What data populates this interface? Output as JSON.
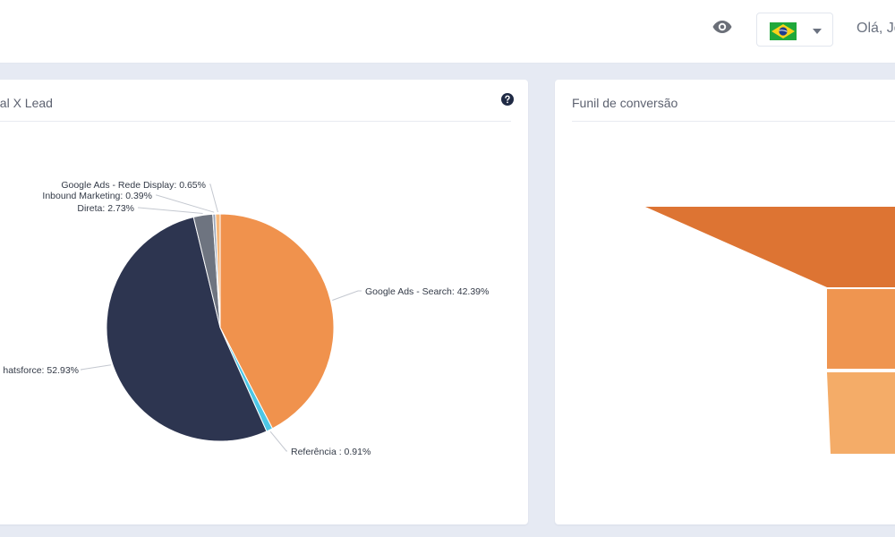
{
  "header": {
    "greeting": "Olá, Jo",
    "visibility_icon": "eye-icon",
    "language_flag": "brazil-flag-icon",
    "dropdown_icon": "caret-down-icon"
  },
  "cards": {
    "pie": {
      "title": "nal X Lead",
      "help_icon": "question-circle-icon"
    },
    "funnel": {
      "title": "Funil de conversão"
    }
  },
  "chart_data": [
    {
      "type": "pie",
      "title": "nal X Lead",
      "slices": [
        {
          "label": "Google Ads - Search: 42.39%",
          "value": 42.39,
          "color": "#f0924d"
        },
        {
          "label": "Referência : 0.91%",
          "value": 0.91,
          "color": "#4dc7e6"
        },
        {
          "label": "hatsforce: 52.93%",
          "value": 52.93,
          "color": "#2d3550"
        },
        {
          "label": "Direta: 2.73%",
          "value": 2.73,
          "color": "#6e7480"
        },
        {
          "label": "Inbound Marketing: 0.39%",
          "value": 0.39,
          "color": "#9aa5b8"
        },
        {
          "label": "Google Ads - Rede Display: 0.65%",
          "value": 0.65,
          "color": "#f7b77a"
        }
      ]
    },
    {
      "type": "funnel",
      "title": "Funil de conversão",
      "stages": [
        {
          "value": 1,
          "color": "#dd7433"
        },
        {
          "value": 1,
          "color": "#ef9550"
        },
        {
          "value": 1,
          "color": "#f4ac68"
        }
      ]
    }
  ]
}
